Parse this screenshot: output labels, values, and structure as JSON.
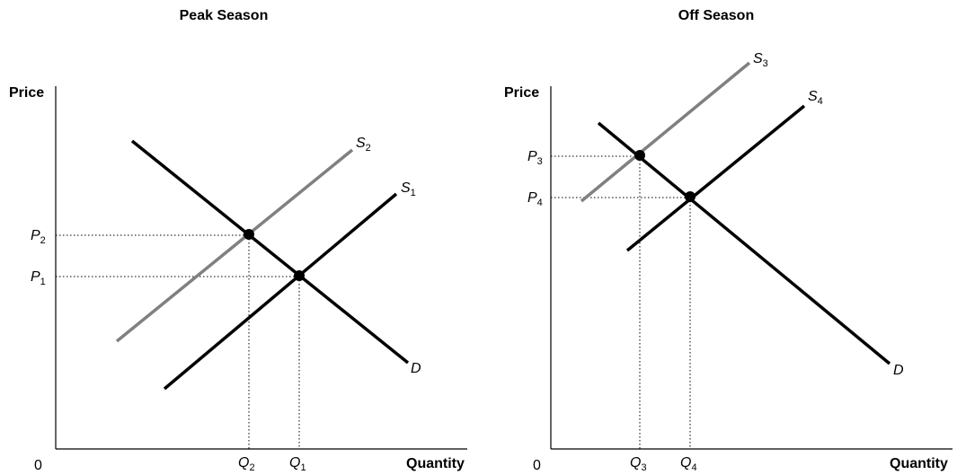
{
  "left_panel": {
    "title": "Peak Season",
    "y_axis_label": "Price",
    "x_axis_label": "Quantity",
    "origin_label": "0",
    "supply_a": {
      "base": "S",
      "sub": "2"
    },
    "supply_b": {
      "base": "S",
      "sub": "1"
    },
    "demand": {
      "base": "D"
    },
    "price_a": {
      "base": "P",
      "sub": "2"
    },
    "price_b": {
      "base": "P",
      "sub": "1"
    },
    "qty_a": {
      "base": "Q",
      "sub": "2"
    },
    "qty_b": {
      "base": "Q",
      "sub": "1"
    }
  },
  "right_panel": {
    "title": "Off Season",
    "y_axis_label": "Price",
    "x_axis_label": "Quantity",
    "origin_label": "0",
    "supply_a": {
      "base": "S",
      "sub": "3"
    },
    "supply_b": {
      "base": "S",
      "sub": "4"
    },
    "demand": {
      "base": "D"
    },
    "price_a": {
      "base": "P",
      "sub": "3"
    },
    "price_b": {
      "base": "P",
      "sub": "4"
    },
    "qty_a": {
      "base": "Q",
      "sub": "3"
    },
    "qty_b": {
      "base": "Q",
      "sub": "4"
    }
  },
  "colors": {
    "new_supply": "#808080",
    "original_curves": "#000000"
  }
}
